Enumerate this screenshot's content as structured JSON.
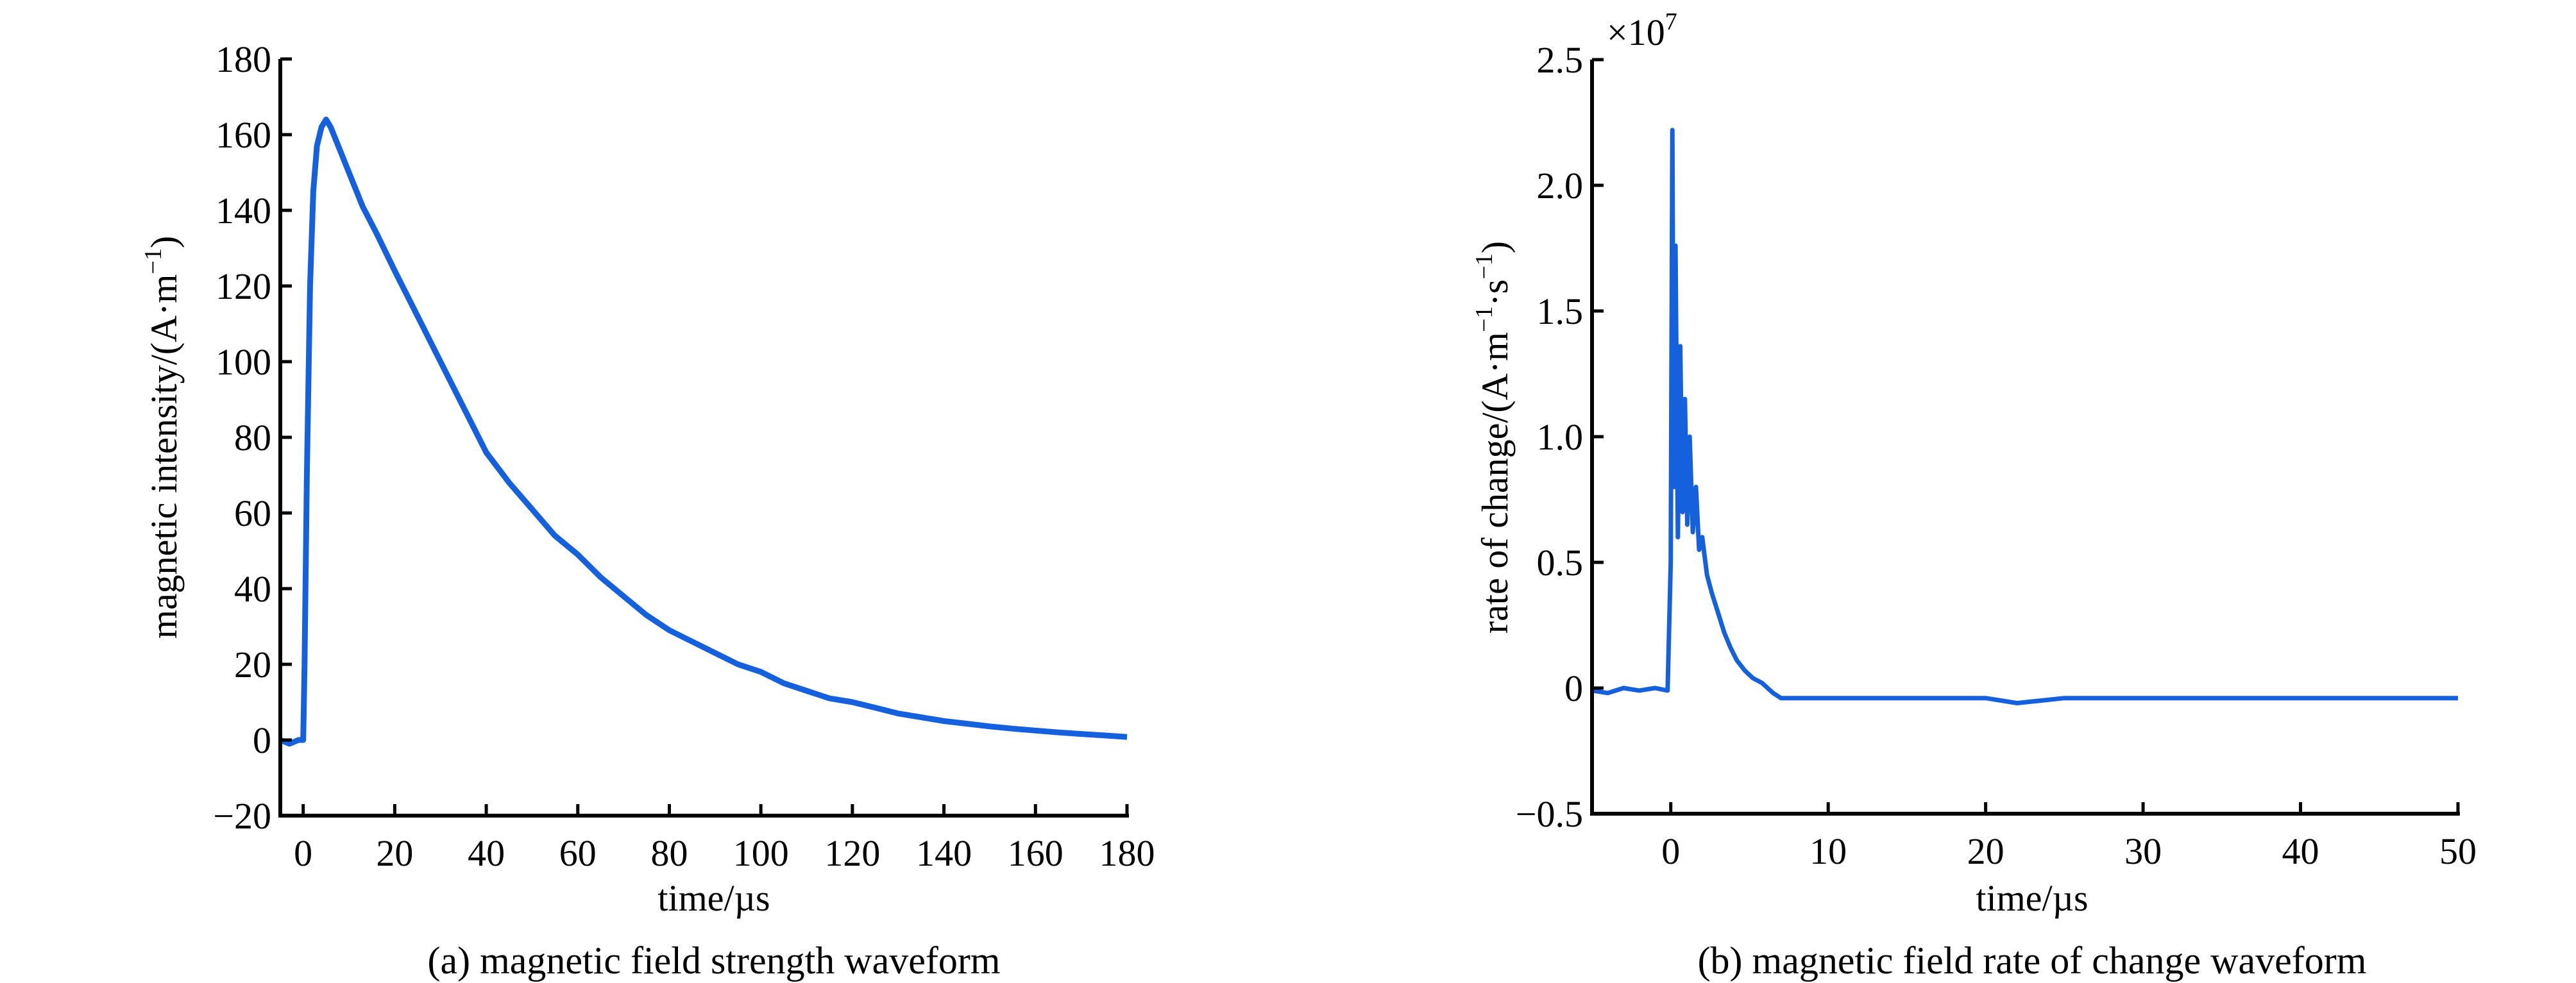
{
  "chart_data": [
    {
      "type": "line",
      "panel": "a",
      "caption": "(a) magnetic field strength waveform",
      "xlabel": "time/µs",
      "ylabel": "magnetic intensity/(A·m",
      "ylabel_sup": "−1",
      "ylabel_close": ")",
      "xlim": [
        -5,
        180
      ],
      "ylim": [
        -20,
        180
      ],
      "xticks": [
        0,
        20,
        40,
        60,
        80,
        100,
        120,
        140,
        160,
        180
      ],
      "xtick_labels": [
        "0",
        "20",
        "40",
        "60",
        "80",
        "100",
        "120",
        "140",
        "160",
        "180"
      ],
      "yticks": [
        -20,
        0,
        20,
        40,
        60,
        80,
        100,
        120,
        140,
        160,
        180
      ],
      "ytick_labels": [
        "−20",
        "0",
        "20",
        "40",
        "60",
        "80",
        "100",
        "120",
        "140",
        "160",
        "180"
      ],
      "grid": false,
      "color": "#1560dc",
      "series": [
        {
          "name": "magnetic field strength",
          "x": [
            -5,
            -3,
            -1,
            0,
            0.3,
            0.8,
            1.5,
            2.2,
            3,
            4,
            5,
            6,
            8,
            10,
            13,
            16,
            20,
            25,
            30,
            35,
            40,
            45,
            50,
            55,
            60,
            65,
            70,
            75,
            80,
            85,
            90,
            95,
            100,
            105,
            110,
            115,
            120,
            125,
            130,
            135,
            140,
            145,
            150,
            155,
            160,
            165,
            170,
            175,
            180
          ],
          "y": [
            0,
            -1,
            0,
            0,
            20,
            70,
            120,
            145,
            157,
            162,
            164,
            162,
            156,
            150,
            141,
            134,
            124,
            112,
            100,
            88,
            76,
            68,
            61,
            54,
            49,
            43,
            38,
            33,
            29,
            26,
            23,
            20,
            18,
            15,
            13,
            11,
            10,
            8.5,
            7,
            6,
            5,
            4.3,
            3.6,
            3,
            2.5,
            2,
            1.6,
            1.2,
            0.8
          ]
        }
      ]
    },
    {
      "type": "line",
      "panel": "b",
      "caption": "(b) magnetic field rate of change waveform",
      "xlabel": "time/µs",
      "ylabel": "rate of change/(A·m",
      "ylabel_sup1": "−1",
      "ylabel_mid": "·s",
      "ylabel_sup2": "−1",
      "ylabel_close": ")",
      "scale_label": "×10",
      "scale_exp": "7",
      "xlim": [
        -5,
        50
      ],
      "ylim": [
        -0.5,
        2.5
      ],
      "xticks": [
        0,
        10,
        20,
        30,
        40,
        50
      ],
      "xtick_labels": [
        "0",
        "10",
        "20",
        "30",
        "40",
        "50"
      ],
      "yticks": [
        -0.5,
        0,
        0.5,
        1.0,
        1.5,
        2.0,
        2.5
      ],
      "ytick_labels": [
        "−0.5",
        "0",
        "0.5",
        "1.0",
        "1.5",
        "2.0",
        "2.5"
      ],
      "grid": false,
      "color": "#1560dc",
      "series": [
        {
          "name": "magnetic field rate of change",
          "x": [
            -5,
            -4,
            -3,
            -2,
            -1,
            -0.2,
            0,
            0.1,
            0.2,
            0.3,
            0.45,
            0.6,
            0.75,
            0.9,
            1.05,
            1.2,
            1.4,
            1.6,
            1.8,
            2.0,
            2.3,
            2.6,
            3.0,
            3.4,
            3.8,
            4.2,
            4.7,
            5.2,
            5.8,
            6.5,
            7,
            10,
            15,
            20,
            22,
            25,
            30,
            35,
            40,
            45,
            50
          ],
          "y": [
            -0.01,
            -0.02,
            0.0,
            -0.01,
            0.0,
            -0.01,
            0.5,
            2.22,
            0.8,
            1.76,
            0.6,
            1.36,
            0.7,
            1.15,
            0.65,
            1.0,
            0.62,
            0.8,
            0.55,
            0.6,
            0.45,
            0.38,
            0.3,
            0.22,
            0.16,
            0.11,
            0.07,
            0.04,
            0.02,
            -0.02,
            -0.04,
            -0.04,
            -0.04,
            -0.04,
            -0.06,
            -0.04,
            -0.04,
            -0.04,
            -0.04,
            -0.04,
            -0.04
          ]
        }
      ]
    }
  ]
}
